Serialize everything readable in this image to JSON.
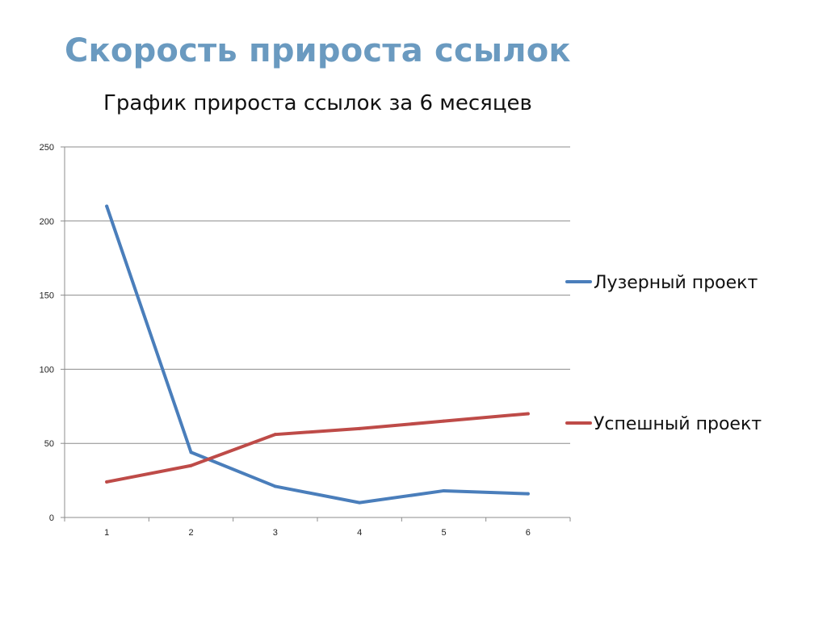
{
  "slide": {
    "title": "Скорость прироста ссылок"
  },
  "chart_data": {
    "type": "line",
    "title": "График прироста ссылок за 6 месяцев",
    "xlabel": "",
    "ylabel": "",
    "categories": [
      "1",
      "2",
      "3",
      "4",
      "5",
      "6"
    ],
    "ylim": [
      0,
      250
    ],
    "yticks": [
      0,
      50,
      100,
      150,
      200,
      250
    ],
    "grid": true,
    "legend_position": "right",
    "series": [
      {
        "name": "Лузерный проект",
        "color": "#4a7ebb",
        "values": [
          210,
          44,
          21,
          10,
          18,
          16
        ]
      },
      {
        "name": "Успешный проект",
        "color": "#be4b48",
        "values": [
          24,
          35,
          56,
          60,
          65,
          70
        ]
      }
    ]
  }
}
